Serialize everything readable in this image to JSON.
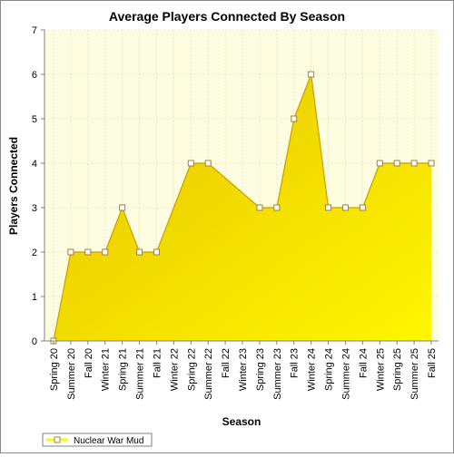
{
  "chart_data": {
    "type": "area",
    "title": "Average Players Connected By Season",
    "xlabel": "Season",
    "ylabel": "Players Connected",
    "ylim": [
      0,
      7
    ],
    "yticks": [
      0,
      1,
      2,
      3,
      4,
      5,
      6,
      7
    ],
    "grid": true,
    "legend": "bottom-left",
    "categories": [
      "Spring 20",
      "Summer 20",
      "Fall 20",
      "Winter 21",
      "Spring 21",
      "Summer 21",
      "Fall 21",
      "Winter 22",
      "Spring 22",
      "Summer 22",
      "Fall 22",
      "Winter 23",
      "Spring 23",
      "Summer 23",
      "Fall 23",
      "Winter 24",
      "Spring 24",
      "Summer 24",
      "Fall 24",
      "Winter 25",
      "Spring 25",
      "Summer 25",
      "Fall 25"
    ],
    "series": [
      {
        "name": "Nuclear War Mud",
        "values": [
          0,
          2,
          2,
          2,
          3,
          2,
          2,
          null,
          4,
          4,
          null,
          null,
          3,
          3,
          5,
          6,
          3,
          3,
          3,
          4,
          4,
          4,
          4
        ]
      }
    ],
    "colors": {
      "area_light": "#fff700",
      "area_dark": "#e6c200",
      "line": "#c8a000",
      "marker_fill": "#ffffff",
      "marker_stroke": "#a08040",
      "plot_bg": "#fffde0"
    }
  }
}
